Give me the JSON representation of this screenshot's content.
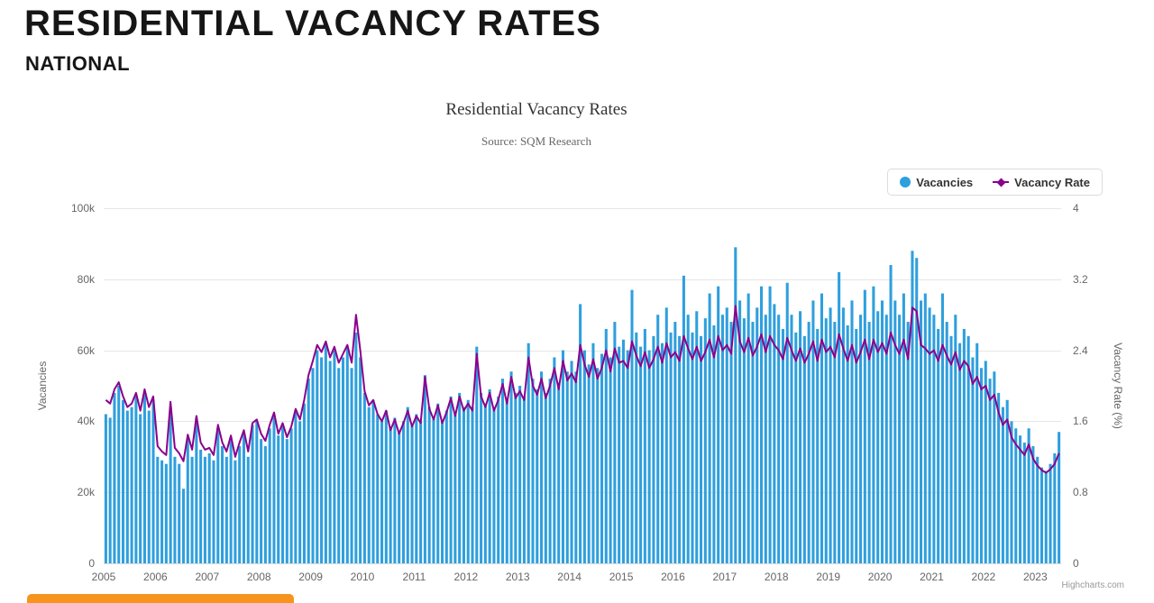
{
  "page": {
    "heading": "RESIDENTIAL VACANCY RATES",
    "subheading": "NATIONAL"
  },
  "chart": {
    "title": "Residential Vacancy Rates",
    "subtitle": "Source: SQM Research",
    "credits": "Highcharts.com",
    "colors": {
      "bars": "#2f9fdd",
      "line": "#8b008b",
      "button": "#f7941d"
    },
    "legend_items": [
      {
        "label": "Vacancies",
        "marker": "circle",
        "color": "#2f9fdd"
      },
      {
        "label": "Vacancy Rate",
        "marker": "line-diamond",
        "color": "#8b008b"
      }
    ]
  },
  "chart_data": {
    "type": "bar",
    "title": "Residential Vacancy Rates",
    "subtitle": "Source: SQM Research",
    "grid": "horizontal",
    "legend_position": "top-right",
    "x_start": {
      "year": 2005,
      "month": 1,
      "interval": "monthly"
    },
    "x_tick_labels": [
      "2005",
      "2006",
      "2007",
      "2008",
      "2009",
      "2010",
      "2011",
      "2012",
      "2013",
      "2014",
      "2015",
      "2016",
      "2017",
      "2018",
      "2019",
      "2020",
      "2021",
      "2022",
      "2023"
    ],
    "axes": {
      "left": {
        "label": "Vacancies",
        "range": [
          0,
          100000
        ],
        "ticks": [
          0,
          20000,
          40000,
          60000,
          80000,
          100000
        ],
        "tick_labels": [
          "0",
          "20k",
          "40k",
          "60k",
          "80k",
          "100k"
        ]
      },
      "right": {
        "label": "Vacancy Rate (%)",
        "range": [
          0,
          4
        ],
        "ticks": [
          0,
          0.8,
          1.6,
          2.4,
          3.2,
          4
        ],
        "tick_labels": [
          "0",
          "0.8",
          "1.6",
          "2.4",
          "3.2",
          "4"
        ]
      }
    },
    "series": [
      {
        "name": "Vacancies",
        "type": "column",
        "axis": "left",
        "color": "#2f9fdd",
        "values": [
          42000,
          41000,
          48000,
          50000,
          46000,
          43000,
          44000,
          47000,
          42000,
          48000,
          43000,
          46000,
          30000,
          29000,
          28000,
          44000,
          30000,
          28000,
          21000,
          35000,
          30000,
          41000,
          32000,
          30000,
          31000,
          29000,
          38000,
          33000,
          30000,
          35000,
          29000,
          33000,
          37000,
          30000,
          39000,
          40000,
          35000,
          33000,
          38000,
          42000,
          36000,
          39000,
          35000,
          38000,
          43000,
          40000,
          45000,
          52000,
          55000,
          60000,
          58000,
          62000,
          57000,
          60000,
          55000,
          58000,
          61000,
          55000,
          65000,
          58000,
          48000,
          44000,
          46000,
          42000,
          40000,
          43000,
          38000,
          41000,
          37000,
          40000,
          44000,
          39000,
          42000,
          40000,
          53000,
          44000,
          41000,
          45000,
          40000,
          43000,
          47000,
          42000,
          48000,
          44000,
          46000,
          44000,
          61000,
          48000,
          45000,
          49000,
          44000,
          47000,
          52000,
          46000,
          54000,
          48000,
          50000,
          47000,
          62000,
          52000,
          49000,
          54000,
          48000,
          52000,
          58000,
          51000,
          60000,
          54000,
          57000,
          54000,
          73000,
          60000,
          56000,
          62000,
          55000,
          59000,
          66000,
          58000,
          68000,
          61000,
          63000,
          60000,
          77000,
          65000,
          61000,
          66000,
          60000,
          64000,
          70000,
          62000,
          72000,
          65000,
          68000,
          64000,
          81000,
          70000,
          65000,
          71000,
          64000,
          69000,
          76000,
          67000,
          78000,
          70000,
          72000,
          68000,
          89000,
          74000,
          69000,
          76000,
          68000,
          72000,
          78000,
          70000,
          78000,
          73000,
          70000,
          66000,
          79000,
          70000,
          65000,
          71000,
          64000,
          68000,
          74000,
          66000,
          76000,
          69000,
          72000,
          68000,
          82000,
          72000,
          67000,
          74000,
          66000,
          70000,
          77000,
          68000,
          78000,
          71000,
          74000,
          70000,
          84000,
          74000,
          70000,
          76000,
          68000,
          88000,
          86000,
          74000,
          76000,
          72000,
          70000,
          66000,
          76000,
          68000,
          64000,
          70000,
          62000,
          66000,
          64000,
          58000,
          62000,
          55000,
          57000,
          52000,
          54000,
          48000,
          44000,
          46000,
          40000,
          38000,
          36000,
          34000,
          38000,
          33000,
          30000,
          27000,
          26000,
          28000,
          31000,
          37000
        ]
      },
      {
        "name": "Vacancy Rate",
        "type": "line",
        "axis": "right",
        "color": "#8b008b",
        "values": [
          1.84,
          1.8,
          1.96,
          2.04,
          1.88,
          1.76,
          1.8,
          1.92,
          1.72,
          1.96,
          1.76,
          1.88,
          1.32,
          1.26,
          1.22,
          1.82,
          1.3,
          1.24,
          1.15,
          1.45,
          1.28,
          1.66,
          1.36,
          1.28,
          1.3,
          1.22,
          1.56,
          1.36,
          1.26,
          1.44,
          1.2,
          1.36,
          1.5,
          1.26,
          1.58,
          1.62,
          1.46,
          1.38,
          1.56,
          1.7,
          1.46,
          1.58,
          1.42,
          1.54,
          1.74,
          1.62,
          1.84,
          2.12,
          2.28,
          2.46,
          2.38,
          2.5,
          2.32,
          2.44,
          2.26,
          2.36,
          2.46,
          2.26,
          2.8,
          2.4,
          1.94,
          1.78,
          1.84,
          1.68,
          1.6,
          1.72,
          1.5,
          1.62,
          1.46,
          1.58,
          1.72,
          1.54,
          1.66,
          1.58,
          2.1,
          1.74,
          1.62,
          1.78,
          1.58,
          1.7,
          1.86,
          1.66,
          1.88,
          1.72,
          1.8,
          1.72,
          2.36,
          1.88,
          1.76,
          1.92,
          1.72,
          1.84,
          2.02,
          1.8,
          2.1,
          1.86,
          1.94,
          1.84,
          2.32,
          2.0,
          1.9,
          2.08,
          1.86,
          2.0,
          2.2,
          1.96,
          2.28,
          2.06,
          2.14,
          2.04,
          2.46,
          2.24,
          2.1,
          2.3,
          2.08,
          2.2,
          2.4,
          2.16,
          2.42,
          2.26,
          2.28,
          2.2,
          2.5,
          2.34,
          2.22,
          2.38,
          2.2,
          2.3,
          2.44,
          2.26,
          2.48,
          2.32,
          2.38,
          2.28,
          2.56,
          2.42,
          2.3,
          2.44,
          2.28,
          2.38,
          2.52,
          2.32,
          2.56,
          2.4,
          2.46,
          2.36,
          2.9,
          2.5,
          2.38,
          2.54,
          2.34,
          2.44,
          2.58,
          2.38,
          2.56,
          2.46,
          2.4,
          2.3,
          2.54,
          2.4,
          2.28,
          2.42,
          2.26,
          2.36,
          2.5,
          2.28,
          2.52,
          2.38,
          2.44,
          2.32,
          2.58,
          2.42,
          2.28,
          2.46,
          2.26,
          2.38,
          2.52,
          2.3,
          2.52,
          2.38,
          2.48,
          2.36,
          2.6,
          2.46,
          2.36,
          2.52,
          2.3,
          2.88,
          2.84,
          2.46,
          2.42,
          2.36,
          2.4,
          2.28,
          2.46,
          2.34,
          2.24,
          2.38,
          2.18,
          2.28,
          2.22,
          2.02,
          2.1,
          1.96,
          2.0,
          1.84,
          1.9,
          1.7,
          1.56,
          1.62,
          1.42,
          1.34,
          1.28,
          1.22,
          1.34,
          1.18,
          1.1,
          1.05,
          1.02,
          1.06,
          1.12,
          1.24
        ]
      }
    ]
  }
}
